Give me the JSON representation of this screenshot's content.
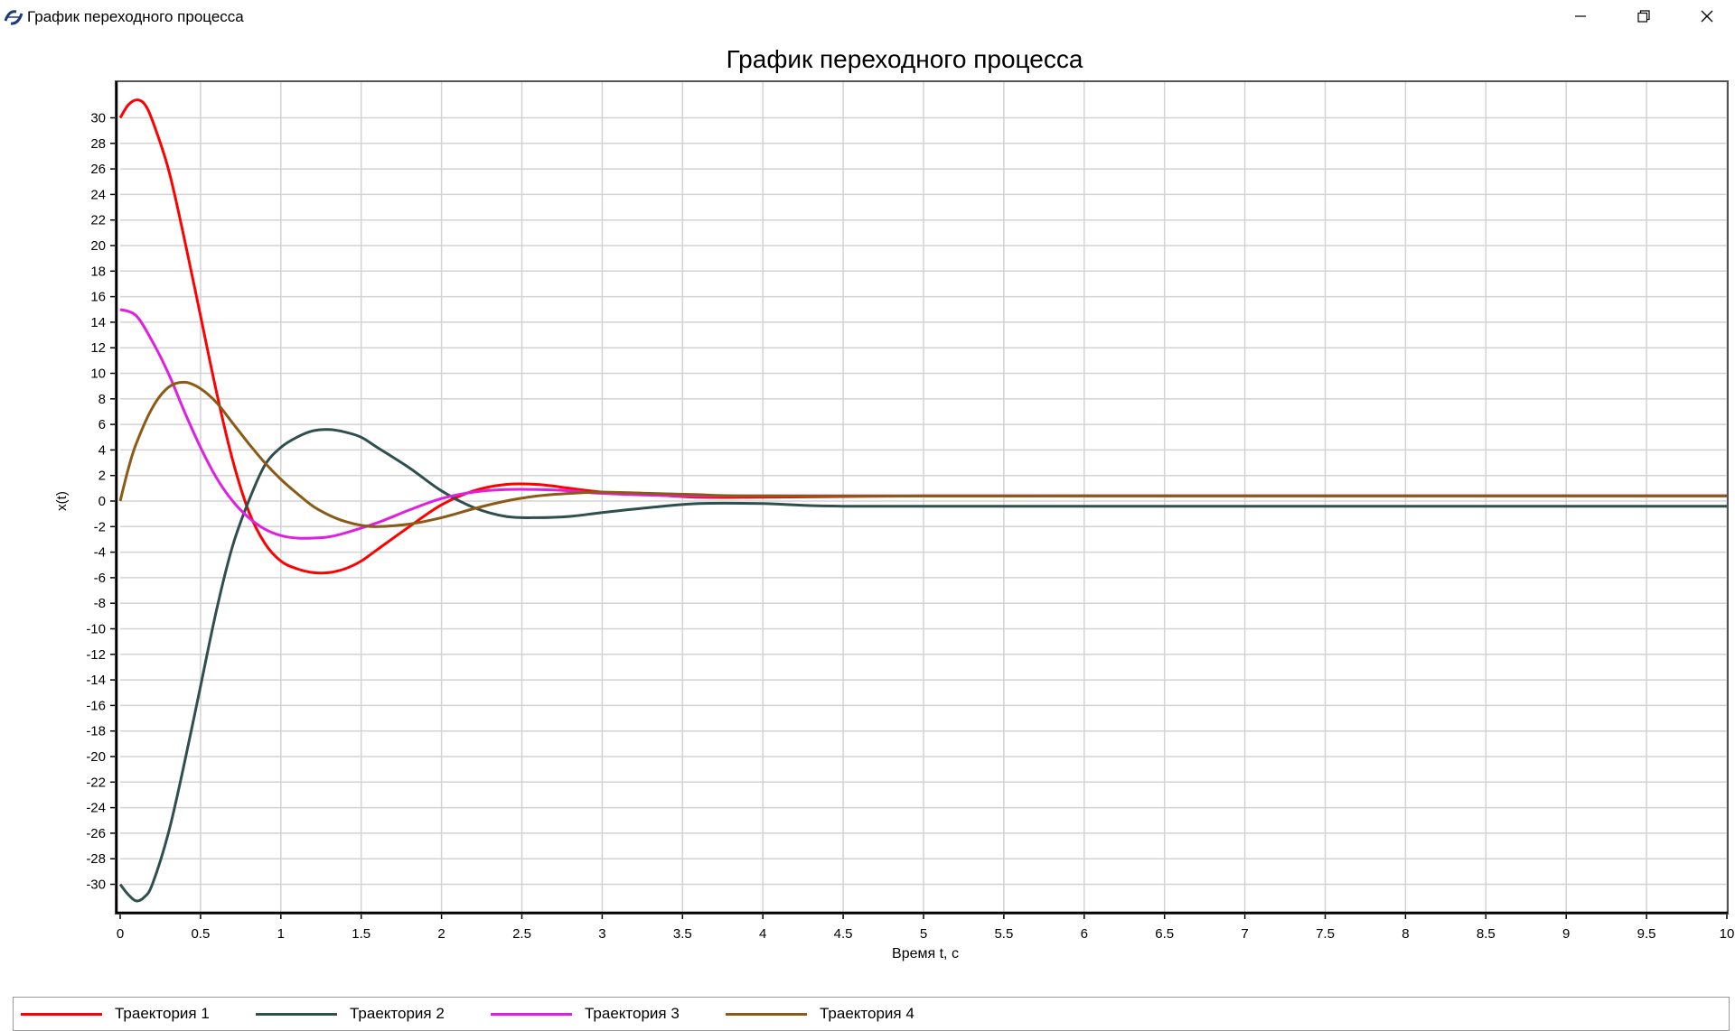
{
  "window": {
    "title": "График переходного процесса",
    "app_icon": "app-logo-icon",
    "controls": {
      "minimize_icon": "minimize-icon",
      "restore_icon": "restore-icon",
      "close_icon": "close-icon"
    }
  },
  "chart_data": {
    "type": "line",
    "title": "График переходного процесса",
    "xlabel": "Время t, c",
    "ylabel": "x(t)",
    "xlim": [
      0,
      10
    ],
    "ylim": [
      -32,
      33
    ],
    "grid": true,
    "legend_position": "bottom",
    "x_ticks": [
      "0",
      "0.5",
      "1",
      "1.5",
      "2",
      "2.5",
      "3",
      "3.5",
      "4",
      "4.5",
      "5",
      "5.5",
      "6",
      "6.5",
      "7",
      "7.5",
      "8",
      "8.5",
      "9",
      "9.5",
      "10"
    ],
    "y_ticks": [
      "30",
      "28",
      "26",
      "24",
      "22",
      "20",
      "18",
      "16",
      "14",
      "12",
      "10",
      "8",
      "6",
      "4",
      "2",
      "0",
      "-2",
      "-4",
      "-6",
      "-8",
      "-10",
      "-12",
      "-14",
      "-16",
      "-18",
      "-20",
      "-22",
      "-24",
      "-26",
      "-28",
      "-30"
    ],
    "series": [
      {
        "name": "Траектория 1",
        "color": "#ff0000",
        "points": [
          [
            0,
            30
          ],
          [
            0.05,
            31
          ],
          [
            0.1,
            31.4
          ],
          [
            0.15,
            31.1
          ],
          [
            0.2,
            29.8
          ],
          [
            0.3,
            26
          ],
          [
            0.4,
            20.5
          ],
          [
            0.5,
            14.5
          ],
          [
            0.6,
            8.5
          ],
          [
            0.7,
            3.2
          ],
          [
            0.8,
            -0.8
          ],
          [
            0.9,
            -3.3
          ],
          [
            1,
            -4.7
          ],
          [
            1.1,
            -5.3
          ],
          [
            1.2,
            -5.6
          ],
          [
            1.3,
            -5.6
          ],
          [
            1.4,
            -5.3
          ],
          [
            1.5,
            -4.7
          ],
          [
            1.6,
            -3.8
          ],
          [
            1.8,
            -2
          ],
          [
            2,
            -0.3
          ],
          [
            2.2,
            0.8
          ],
          [
            2.4,
            1.3
          ],
          [
            2.6,
            1.3
          ],
          [
            2.8,
            1
          ],
          [
            3,
            0.7
          ],
          [
            3.3,
            0.5
          ],
          [
            3.6,
            0.3
          ],
          [
            4,
            0.3
          ],
          [
            5,
            0.4
          ],
          [
            6,
            0.4
          ],
          [
            8,
            0.4
          ],
          [
            10,
            0.4
          ]
        ]
      },
      {
        "name": "Траектория 2",
        "color": "#2f4f4f",
        "points": [
          [
            0,
            -30
          ],
          [
            0.05,
            -30.8
          ],
          [
            0.1,
            -31.3
          ],
          [
            0.15,
            -31
          ],
          [
            0.2,
            -30
          ],
          [
            0.3,
            -26
          ],
          [
            0.4,
            -20.5
          ],
          [
            0.5,
            -14.5
          ],
          [
            0.6,
            -8.5
          ],
          [
            0.7,
            -3.5
          ],
          [
            0.8,
            0
          ],
          [
            0.9,
            2.8
          ],
          [
            1,
            4.2
          ],
          [
            1.1,
            5
          ],
          [
            1.2,
            5.5
          ],
          [
            1.3,
            5.6
          ],
          [
            1.4,
            5.4
          ],
          [
            1.5,
            5
          ],
          [
            1.6,
            4.2
          ],
          [
            1.8,
            2.6
          ],
          [
            2,
            0.8
          ],
          [
            2.2,
            -0.5
          ],
          [
            2.4,
            -1.2
          ],
          [
            2.6,
            -1.3
          ],
          [
            2.8,
            -1.2
          ],
          [
            3,
            -0.9
          ],
          [
            3.3,
            -0.5
          ],
          [
            3.6,
            -0.2
          ],
          [
            4,
            -0.2
          ],
          [
            4.5,
            -0.4
          ],
          [
            6,
            -0.4
          ],
          [
            8,
            -0.4
          ],
          [
            10,
            -0.4
          ]
        ]
      },
      {
        "name": "Траектория 3",
        "color": "#e020e0",
        "points": [
          [
            0,
            15
          ],
          [
            0.1,
            14.5
          ],
          [
            0.2,
            12.5
          ],
          [
            0.3,
            10
          ],
          [
            0.4,
            7
          ],
          [
            0.5,
            4.2
          ],
          [
            0.6,
            1.8
          ],
          [
            0.7,
            0
          ],
          [
            0.8,
            -1.3
          ],
          [
            0.9,
            -2.2
          ],
          [
            1,
            -2.7
          ],
          [
            1.1,
            -2.9
          ],
          [
            1.2,
            -2.9
          ],
          [
            1.3,
            -2.8
          ],
          [
            1.4,
            -2.5
          ],
          [
            1.6,
            -1.7
          ],
          [
            1.8,
            -0.7
          ],
          [
            2,
            0.2
          ],
          [
            2.2,
            0.7
          ],
          [
            2.4,
            0.9
          ],
          [
            2.6,
            0.9
          ],
          [
            2.8,
            0.8
          ],
          [
            3,
            0.6
          ],
          [
            3.5,
            0.4
          ],
          [
            4,
            0.4
          ],
          [
            6,
            0.4
          ],
          [
            8,
            0.4
          ],
          [
            10,
            0.4
          ]
        ]
      },
      {
        "name": "Траектория 4",
        "color": "#8b5a14",
        "points": [
          [
            0,
            0
          ],
          [
            0.05,
            2.5
          ],
          [
            0.1,
            4.5
          ],
          [
            0.2,
            7.3
          ],
          [
            0.3,
            8.9
          ],
          [
            0.4,
            9.3
          ],
          [
            0.5,
            8.8
          ],
          [
            0.6,
            7.7
          ],
          [
            0.7,
            6.1
          ],
          [
            0.8,
            4.5
          ],
          [
            0.9,
            3
          ],
          [
            1,
            1.7
          ],
          [
            1.1,
            0.6
          ],
          [
            1.2,
            -0.4
          ],
          [
            1.3,
            -1.1
          ],
          [
            1.4,
            -1.6
          ],
          [
            1.5,
            -1.9
          ],
          [
            1.6,
            -2
          ],
          [
            1.8,
            -1.8
          ],
          [
            2,
            -1.3
          ],
          [
            2.2,
            -0.6
          ],
          [
            2.4,
            0
          ],
          [
            2.6,
            0.4
          ],
          [
            2.8,
            0.6
          ],
          [
            3,
            0.7
          ],
          [
            3.3,
            0.6
          ],
          [
            3.6,
            0.5
          ],
          [
            4,
            0.4
          ],
          [
            6,
            0.4
          ],
          [
            8,
            0.4
          ],
          [
            10,
            0.4
          ]
        ]
      }
    ]
  }
}
